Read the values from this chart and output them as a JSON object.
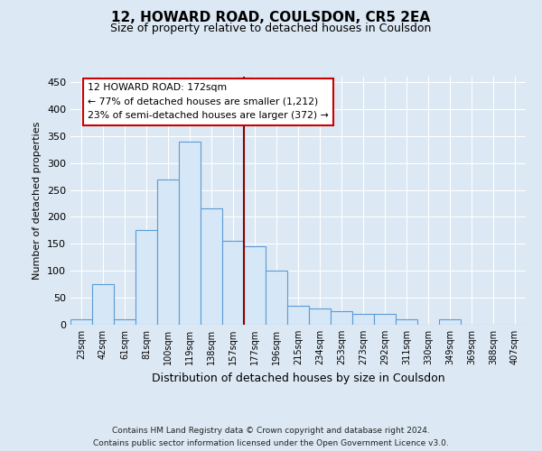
{
  "title": "12, HOWARD ROAD, COULSDON, CR5 2EA",
  "subtitle": "Size of property relative to detached houses in Coulsdon",
  "xlabel": "Distribution of detached houses by size in Coulsdon",
  "ylabel": "Number of detached properties",
  "footnote1": "Contains HM Land Registry data © Crown copyright and database right 2024.",
  "footnote2": "Contains public sector information licensed under the Open Government Licence v3.0.",
  "bin_labels": [
    "23sqm",
    "42sqm",
    "61sqm",
    "81sqm",
    "100sqm",
    "119sqm",
    "138sqm",
    "157sqm",
    "177sqm",
    "196sqm",
    "215sqm",
    "234sqm",
    "253sqm",
    "273sqm",
    "292sqm",
    "311sqm",
    "330sqm",
    "349sqm",
    "369sqm",
    "388sqm",
    "407sqm"
  ],
  "bar_heights": [
    10,
    75,
    10,
    175,
    270,
    340,
    215,
    155,
    145,
    100,
    35,
    30,
    25,
    20,
    20,
    10,
    0,
    10,
    0,
    0,
    0
  ],
  "bar_color": "#d6e8f7",
  "bar_edge_color": "#5b9bd5",
  "vline_color": "#8b0000",
  "vline_x_index": 8,
  "annotation_text_line1": "12 HOWARD ROAD: 172sqm",
  "annotation_text_line2": "← 77% of detached houses are smaller (1,212)",
  "annotation_text_line3": "23% of semi-detached houses are larger (372) →",
  "annotation_box_color": "#ffffff",
  "annotation_box_edge": "#cc0000",
  "ylim": [
    0,
    460
  ],
  "yticks": [
    0,
    50,
    100,
    150,
    200,
    250,
    300,
    350,
    400,
    450
  ],
  "background_color": "#dce8f3",
  "plot_background": "#dce8f3",
  "grid_color": "#ffffff",
  "title_fontsize": 11,
  "subtitle_fontsize": 9
}
